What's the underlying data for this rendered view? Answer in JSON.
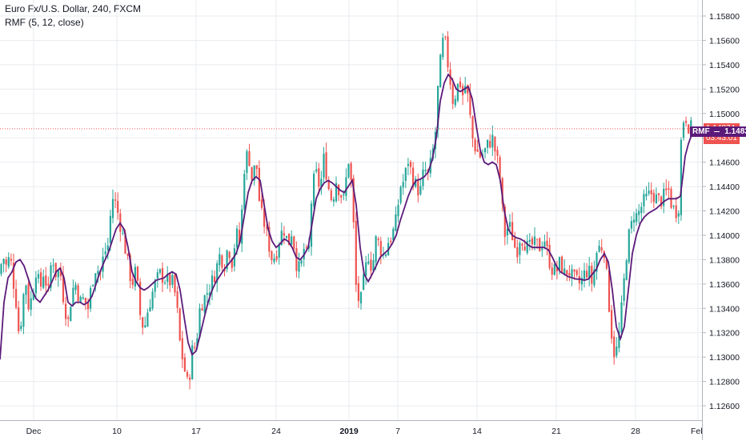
{
  "legend": {
    "title": "Euro Fx/U.S. Dollar, 240, FXCM",
    "indicator": "RMF (5, 12, close)"
  },
  "colors": {
    "up": "#26a69a",
    "down": "#ef5350",
    "rmf": "#5b1a7a",
    "price_line": "#ef5350",
    "rmf_tag": "#5b1a7a",
    "grid": "#e8ebef"
  },
  "current_price": {
    "label": "1.14874",
    "value": 1.14874,
    "countdown": "03:43:01"
  },
  "rmf_tag": {
    "name": "RMF",
    "label": "1.14839",
    "value": 1.14839
  },
  "chart_data": {
    "type": "candlestick",
    "title": "Euro Fx/U.S. Dollar, 240, FXCM",
    "ylim": [
      1.125,
      1.159
    ],
    "grid": true,
    "price_ticks": [
      "1.15800",
      "1.15600",
      "1.15400",
      "1.15200",
      "1.15000",
      "1.14800",
      "1.14600",
      "1.14400",
      "1.14200",
      "1.14000",
      "1.13800",
      "1.13600",
      "1.13400",
      "1.13200",
      "1.13000",
      "1.12800",
      "1.12600"
    ],
    "time_ticks": [
      "Dec",
      "10",
      "17",
      "24",
      "2019",
      "7",
      "14",
      "21",
      "28",
      "Feb"
    ],
    "close_path": [
      [
        0,
        1.1368
      ],
      [
        3,
        1.1385
      ],
      [
        6,
        1.1378
      ],
      [
        9,
        1.1372
      ],
      [
        12,
        1.1385
      ],
      [
        15,
        1.1372
      ],
      [
        18,
        1.1355
      ],
      [
        21,
        1.1342
      ],
      [
        24,
        1.1315
      ],
      [
        27,
        1.1335
      ],
      [
        30,
        1.1355
      ],
      [
        33,
        1.1362
      ],
      [
        36,
        1.134
      ],
      [
        40,
        1.135
      ],
      [
        45,
        1.1372
      ],
      [
        50,
        1.1355
      ],
      [
        55,
        1.1372
      ],
      [
        60,
        1.135
      ],
      [
        65,
        1.1385
      ],
      [
        70,
        1.1368
      ],
      [
        75,
        1.1372
      ],
      [
        80,
        1.1345
      ],
      [
        85,
        1.1328
      ],
      [
        90,
        1.1355
      ],
      [
        95,
        1.136
      ],
      [
        100,
        1.1345
      ],
      [
        105,
        1.1348
      ],
      [
        110,
        1.134
      ],
      [
        115,
        1.1362
      ],
      [
        120,
        1.1375
      ],
      [
        125,
        1.1368
      ],
      [
        130,
        1.1385
      ],
      [
        135,
        1.1392
      ],
      [
        140,
        1.1432
      ],
      [
        145,
        1.1425
      ],
      [
        150,
        1.141
      ],
      [
        155,
        1.1395
      ],
      [
        160,
        1.1375
      ],
      [
        165,
        1.136
      ],
      [
        170,
        1.1372
      ],
      [
        175,
        1.1335
      ],
      [
        180,
        1.1322
      ],
      [
        185,
        1.134
      ],
      [
        190,
        1.1352
      ],
      [
        195,
        1.1362
      ],
      [
        200,
        1.1368
      ],
      [
        205,
        1.1365
      ],
      [
        210,
        1.1362
      ],
      [
        215,
        1.1362
      ],
      [
        220,
        1.1348
      ],
      [
        225,
        1.131
      ],
      [
        230,
        1.1292
      ],
      [
        235,
        1.1275
      ],
      [
        240,
        1.1305
      ],
      [
        245,
        1.131
      ],
      [
        250,
        1.1342
      ],
      [
        255,
        1.1348
      ],
      [
        260,
        1.1355
      ],
      [
        265,
        1.1362
      ],
      [
        270,
        1.1372
      ],
      [
        275,
        1.1385
      ],
      [
        280,
        1.1375
      ],
      [
        285,
        1.1392
      ],
      [
        290,
        1.1378
      ],
      [
        295,
        1.1402
      ],
      [
        300,
        1.1392
      ],
      [
        305,
        1.1455
      ],
      [
        310,
        1.147
      ],
      [
        315,
        1.1445
      ],
      [
        320,
        1.1462
      ],
      [
        325,
        1.142
      ],
      [
        330,
        1.141
      ],
      [
        335,
        1.1395
      ],
      [
        340,
        1.138
      ],
      [
        345,
        1.1385
      ],
      [
        350,
        1.14
      ],
      [
        355,
        1.1405
      ],
      [
        360,
        1.1392
      ],
      [
        365,
        1.1405
      ],
      [
        370,
        1.1378
      ],
      [
        375,
        1.137
      ],
      [
        380,
        1.139
      ],
      [
        385,
        1.1378
      ],
      [
        390,
        1.144
      ],
      [
        395,
        1.145
      ],
      [
        400,
        1.1438
      ],
      [
        405,
        1.1465
      ],
      [
        410,
        1.144
      ],
      [
        415,
        1.1428
      ],
      [
        420,
        1.1445
      ],
      [
        425,
        1.1435
      ],
      [
        430,
        1.1428
      ],
      [
        435,
        1.1465
      ],
      [
        440,
        1.1435
      ],
      [
        445,
        1.1355
      ],
      [
        450,
        1.1342
      ],
      [
        455,
        1.1365
      ],
      [
        460,
        1.1385
      ],
      [
        465,
        1.1372
      ],
      [
        470,
        1.1398
      ],
      [
        475,
        1.139
      ],
      [
        480,
        1.1382
      ],
      [
        485,
        1.1395
      ],
      [
        490,
        1.14
      ],
      [
        495,
        1.1412
      ],
      [
        500,
        1.144
      ],
      [
        505,
        1.1445
      ],
      [
        510,
        1.1462
      ],
      [
        515,
        1.1448
      ],
      [
        520,
        1.144
      ],
      [
        525,
        1.1435
      ],
      [
        530,
        1.1455
      ],
      [
        535,
        1.1448
      ],
      [
        540,
        1.1465
      ],
      [
        545,
        1.149
      ],
      [
        548,
        1.1532
      ],
      [
        551,
        1.1545
      ],
      [
        554,
        1.1562
      ],
      [
        557,
        1.1555
      ],
      [
        560,
        1.1538
      ],
      [
        563,
        1.1525
      ],
      [
        566,
        1.151
      ],
      [
        570,
        1.1518
      ],
      [
        574,
        1.1528
      ],
      [
        578,
        1.1515
      ],
      [
        582,
        1.1525
      ],
      [
        586,
        1.1505
      ],
      [
        590,
        1.148
      ],
      [
        595,
        1.147
      ],
      [
        600,
        1.1465
      ],
      [
        605,
        1.1468
      ],
      [
        610,
        1.1475
      ],
      [
        615,
        1.148
      ],
      [
        620,
        1.1465
      ],
      [
        623,
        1.1455
      ],
      [
        626,
        1.144
      ],
      [
        629,
        1.1405
      ],
      [
        632,
        1.1398
      ],
      [
        635,
        1.141
      ],
      [
        640,
        1.14
      ],
      [
        645,
        1.1385
      ],
      [
        650,
        1.14
      ],
      [
        655,
        1.1395
      ],
      [
        660,
        1.1388
      ],
      [
        665,
        1.1392
      ],
      [
        670,
        1.1392
      ],
      [
        675,
        1.139
      ],
      [
        680,
        1.1398
      ],
      [
        685,
        1.1382
      ],
      [
        690,
        1.1372
      ],
      [
        695,
        1.137
      ],
      [
        700,
        1.1378
      ],
      [
        705,
        1.1368
      ],
      [
        710,
        1.1372
      ],
      [
        715,
        1.1365
      ],
      [
        720,
        1.1362
      ],
      [
        725,
        1.136
      ],
      [
        730,
        1.1368
      ],
      [
        735,
        1.1372
      ],
      [
        740,
        1.136
      ],
      [
        745,
        1.1385
      ],
      [
        750,
        1.1392
      ],
      [
        755,
        1.1388
      ],
      [
        760,
        1.135
      ],
      [
        764,
        1.132
      ],
      [
        768,
        1.13
      ],
      [
        772,
        1.131
      ],
      [
        776,
        1.1335
      ],
      [
        780,
        1.1365
      ],
      [
        784,
        1.1395
      ],
      [
        788,
        1.1405
      ],
      [
        792,
        1.1418
      ],
      [
        796,
        1.1415
      ],
      [
        800,
        1.1422
      ],
      [
        805,
        1.1428
      ],
      [
        810,
        1.1432
      ],
      [
        815,
        1.1435
      ],
      [
        820,
        1.143
      ],
      [
        825,
        1.1428
      ],
      [
        830,
        1.1432
      ],
      [
        835,
        1.1438
      ],
      [
        840,
        1.1422
      ],
      [
        845,
        1.142
      ],
      [
        848,
        1.1425
      ],
      [
        850,
        1.1468
      ],
      [
        852,
        1.1488
      ],
      [
        854,
        1.1495
      ],
      [
        856,
        1.15
      ],
      [
        859,
        1.1492
      ],
      [
        862,
        1.1488
      ],
      [
        865,
        1.1487
      ]
    ],
    "rmf_path": [
      [
        0,
        1.1298
      ],
      [
        5,
        1.1345
      ],
      [
        10,
        1.1365
      ],
      [
        15,
        1.137
      ],
      [
        20,
        1.1378
      ],
      [
        25,
        1.138
      ],
      [
        30,
        1.1375
      ],
      [
        35,
        1.1365
      ],
      [
        40,
        1.1355
      ],
      [
        45,
        1.1348
      ],
      [
        50,
        1.1345
      ],
      [
        55,
        1.135
      ],
      [
        60,
        1.1355
      ],
      [
        65,
        1.1362
      ],
      [
        70,
        1.137
      ],
      [
        75,
        1.1373
      ],
      [
        80,
        1.1365
      ],
      [
        85,
        1.1345
      ],
      [
        90,
        1.1342
      ],
      [
        95,
        1.1345
      ],
      [
        100,
        1.1345
      ],
      [
        105,
        1.1343
      ],
      [
        110,
        1.1345
      ],
      [
        115,
        1.135
      ],
      [
        120,
        1.136
      ],
      [
        125,
        1.137
      ],
      [
        130,
        1.1378
      ],
      [
        135,
        1.1385
      ],
      [
        140,
        1.1395
      ],
      [
        145,
        1.1405
      ],
      [
        150,
        1.141
      ],
      [
        155,
        1.1405
      ],
      [
        160,
        1.139
      ],
      [
        165,
        1.137
      ],
      [
        170,
        1.1362
      ],
      [
        175,
        1.1357
      ],
      [
        180,
        1.1355
      ],
      [
        185,
        1.1357
      ],
      [
        190,
        1.136
      ],
      [
        195,
        1.1363
      ],
      [
        200,
        1.1364
      ],
      [
        205,
        1.1365
      ],
      [
        210,
        1.1368
      ],
      [
        215,
        1.137
      ],
      [
        220,
        1.1368
      ],
      [
        225,
        1.1355
      ],
      [
        230,
        1.1333
      ],
      [
        235,
        1.1312
      ],
      [
        240,
        1.1302
      ],
      [
        245,
        1.1305
      ],
      [
        250,
        1.1318
      ],
      [
        255,
        1.1332
      ],
      [
        260,
        1.1345
      ],
      [
        265,
        1.1355
      ],
      [
        270,
        1.1362
      ],
      [
        275,
        1.1367
      ],
      [
        280,
        1.1372
      ],
      [
        285,
        1.1376
      ],
      [
        290,
        1.138
      ],
      [
        295,
        1.1385
      ],
      [
        300,
        1.1395
      ],
      [
        305,
        1.1415
      ],
      [
        310,
        1.1435
      ],
      [
        315,
        1.1445
      ],
      [
        320,
        1.1448
      ],
      [
        325,
        1.1445
      ],
      [
        330,
        1.1425
      ],
      [
        335,
        1.1405
      ],
      [
        340,
        1.1395
      ],
      [
        345,
        1.139
      ],
      [
        350,
        1.1393
      ],
      [
        355,
        1.1397
      ],
      [
        360,
        1.1395
      ],
      [
        365,
        1.139
      ],
      [
        370,
        1.1382
      ],
      [
        375,
        1.138
      ],
      [
        380,
        1.1384
      ],
      [
        385,
        1.139
      ],
      [
        390,
        1.141
      ],
      [
        395,
        1.143
      ],
      [
        400,
        1.1438
      ],
      [
        405,
        1.1443
      ],
      [
        410,
        1.1445
      ],
      [
        415,
        1.1443
      ],
      [
        420,
        1.144
      ],
      [
        425,
        1.1437
      ],
      [
        430,
        1.1435
      ],
      [
        435,
        1.144
      ],
      [
        440,
        1.1445
      ],
      [
        445,
        1.1425
      ],
      [
        450,
        1.139
      ],
      [
        455,
        1.1368
      ],
      [
        460,
        1.1362
      ],
      [
        465,
        1.1368
      ],
      [
        470,
        1.1375
      ],
      [
        475,
        1.1382
      ],
      [
        480,
        1.1385
      ],
      [
        485,
        1.1388
      ],
      [
        490,
        1.1393
      ],
      [
        495,
        1.14
      ],
      [
        500,
        1.1412
      ],
      [
        505,
        1.1422
      ],
      [
        510,
        1.1432
      ],
      [
        515,
        1.144
      ],
      [
        520,
        1.1445
      ],
      [
        525,
        1.1446
      ],
      [
        530,
        1.1448
      ],
      [
        535,
        1.1452
      ],
      [
        540,
        1.1462
      ],
      [
        545,
        1.148
      ],
      [
        550,
        1.151
      ],
      [
        555,
        1.1525
      ],
      [
        560,
        1.1532
      ],
      [
        565,
        1.1528
      ],
      [
        570,
        1.152
      ],
      [
        575,
        1.1518
      ],
      [
        580,
        1.152
      ],
      [
        585,
        1.1522
      ],
      [
        590,
        1.1512
      ],
      [
        595,
        1.149
      ],
      [
        600,
        1.147
      ],
      [
        605,
        1.146
      ],
      [
        610,
        1.1458
      ],
      [
        615,
        1.146
      ],
      [
        620,
        1.1458
      ],
      [
        625,
        1.1445
      ],
      [
        630,
        1.142
      ],
      [
        635,
        1.1405
      ],
      [
        640,
        1.14
      ],
      [
        645,
        1.1398
      ],
      [
        650,
        1.1397
      ],
      [
        655,
        1.1395
      ],
      [
        660,
        1.1392
      ],
      [
        665,
        1.139
      ],
      [
        670,
        1.139
      ],
      [
        675,
        1.139
      ],
      [
        680,
        1.139
      ],
      [
        685,
        1.1388
      ],
      [
        690,
        1.1382
      ],
      [
        695,
        1.1375
      ],
      [
        700,
        1.137
      ],
      [
        705,
        1.1368
      ],
      [
        710,
        1.1366
      ],
      [
        715,
        1.1365
      ],
      [
        720,
        1.1364
      ],
      [
        725,
        1.1364
      ],
      [
        730,
        1.1363
      ],
      [
        735,
        1.1364
      ],
      [
        740,
        1.1368
      ],
      [
        745,
        1.1372
      ],
      [
        750,
        1.138
      ],
      [
        755,
        1.1385
      ],
      [
        760,
        1.1378
      ],
      [
        765,
        1.1355
      ],
      [
        770,
        1.1325
      ],
      [
        775,
        1.1315
      ],
      [
        780,
        1.1325
      ],
      [
        785,
        1.1355
      ],
      [
        790,
        1.1385
      ],
      [
        795,
        1.14
      ],
      [
        800,
        1.141
      ],
      [
        805,
        1.1415
      ],
      [
        810,
        1.1418
      ],
      [
        815,
        1.142
      ],
      [
        820,
        1.1422
      ],
      [
        825,
        1.1425
      ],
      [
        830,
        1.1428
      ],
      [
        835,
        1.143
      ],
      [
        840,
        1.143
      ],
      [
        845,
        1.143
      ],
      [
        850,
        1.1432
      ],
      [
        853,
        1.1448
      ],
      [
        856,
        1.1465
      ],
      [
        860,
        1.1475
      ],
      [
        865,
        1.1484
      ]
    ]
  }
}
